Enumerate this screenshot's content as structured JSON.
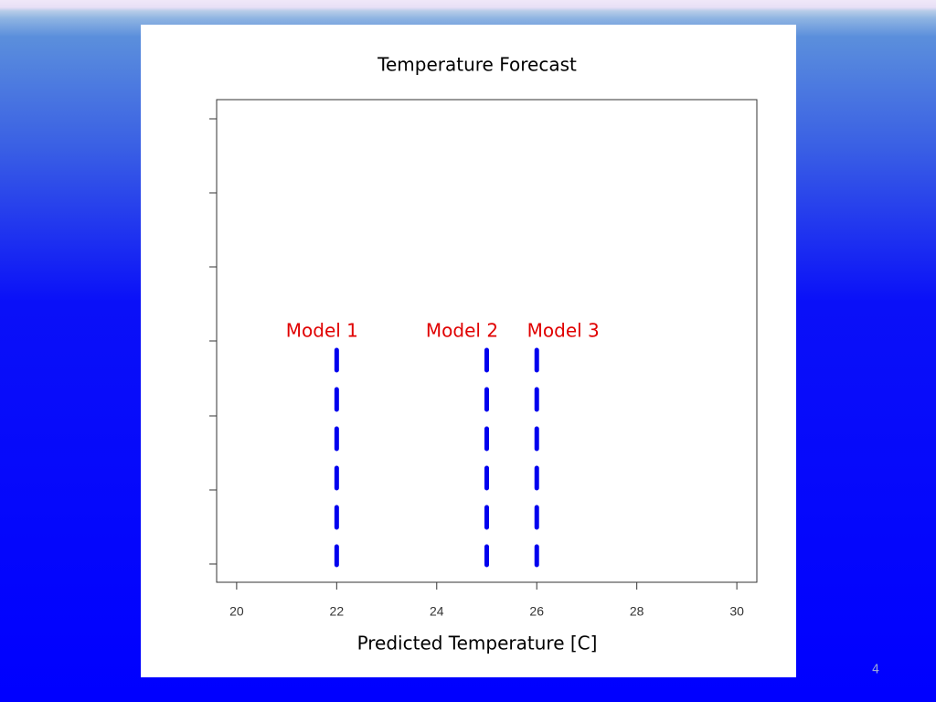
{
  "chart_data": {
    "type": "vline",
    "title": "Temperature Forecast",
    "x_label": "Predicted Temperature [C]",
    "xlim": [
      19.6,
      30.4
    ],
    "xticks": [
      20,
      22,
      24,
      26,
      28,
      30
    ],
    "series": [
      {
        "name": "Model 1",
        "color": "#0000ee",
        "label_color": "#e00000",
        "values": [
          22
        ]
      },
      {
        "name": "Model 2",
        "color": "#0000ee",
        "label_color": "#e00000",
        "values": [
          25
        ]
      },
      {
        "name": "Model 3",
        "color": "#0000ee",
        "label_color": "#e00000",
        "values": [
          26
        ]
      }
    ]
  },
  "slide": {
    "page_number": "4"
  }
}
